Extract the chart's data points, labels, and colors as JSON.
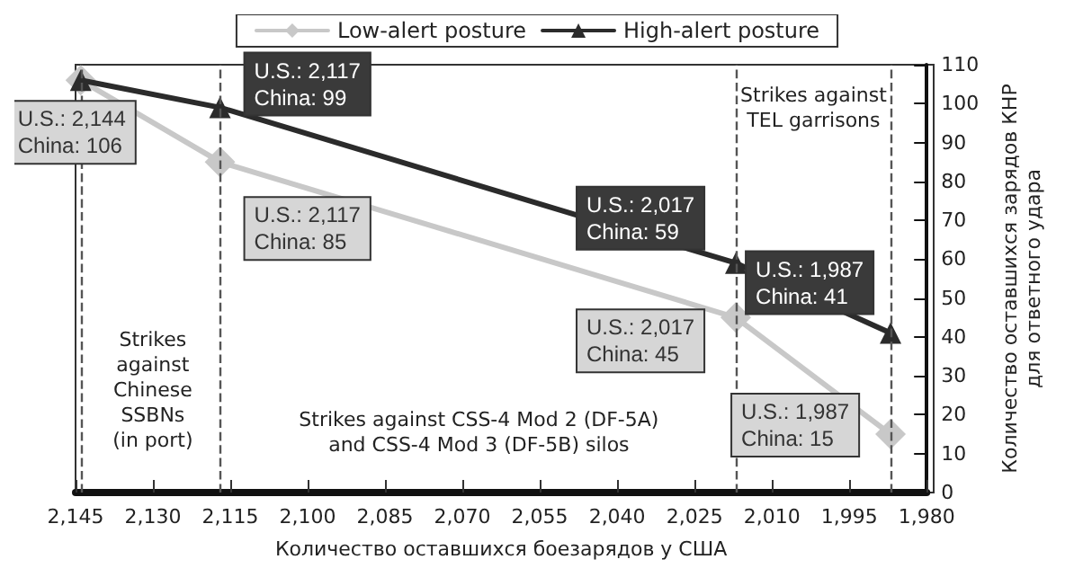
{
  "chart_data": {
    "type": "line",
    "xlabel": "Количество оставшихся боезарядов у США",
    "ylabel": "Количество оставшихся зарядов КНР\nдля ответного удара",
    "x": [
      2144,
      2117,
      2017,
      1987
    ],
    "series": [
      {
        "name": "Low-alert posture",
        "color": "#c8c8c8",
        "marker": "diamond",
        "values": [
          106,
          85,
          45,
          15
        ]
      },
      {
        "name": "High-alert posture",
        "color": "#2b2b2b",
        "marker": "triangle",
        "values": [
          106,
          99,
          59,
          41
        ]
      }
    ],
    "xlim": [
      2145,
      1980
    ],
    "xticks": [
      {
        "value": 2145,
        "label": "2,145"
      },
      {
        "value": 2130,
        "label": "2,130"
      },
      {
        "value": 2115,
        "label": "2,115"
      },
      {
        "value": 2100,
        "label": "2,100"
      },
      {
        "value": 2085,
        "label": "2,085"
      },
      {
        "value": 2070,
        "label": "2,070"
      },
      {
        "value": 2055,
        "label": "2,055"
      },
      {
        "value": 2040,
        "label": "2,040"
      },
      {
        "value": 2025,
        "label": "2,025"
      },
      {
        "value": 2010,
        "label": "2,010"
      },
      {
        "value": 1995,
        "label": "1,995"
      },
      {
        "value": 1980,
        "label": "1,980"
      }
    ],
    "ylim": [
      0,
      110
    ],
    "yticks": [
      0,
      10,
      20,
      30,
      40,
      50,
      60,
      70,
      80,
      90,
      100,
      110
    ],
    "ref_lines": [
      {
        "axis": "x",
        "value": 2144,
        "color": "#555555",
        "line_style": "dashed"
      },
      {
        "axis": "x",
        "value": 2117,
        "color": "#555555",
        "line_style": "dashed"
      },
      {
        "axis": "x",
        "value": 2017,
        "color": "#555555",
        "line_style": "dashed"
      },
      {
        "axis": "x",
        "value": 1987,
        "color": "#555555",
        "line_style": "dashed"
      }
    ],
    "annotations": [
      {
        "text": "U.S.: 2,144\nChina: 106",
        "x": 2144,
        "y": 106
      },
      {
        "text": "U.S.: 2,117\nChina: 99",
        "x": 2117,
        "y": 99
      },
      {
        "text": "U.S.: 2,117\nChina: 85",
        "x": 2117,
        "y": 85
      },
      {
        "text": "U.S.: 2,017\nChina: 59",
        "x": 2017,
        "y": 59
      },
      {
        "text": "U.S.: 2,017\nChina: 45",
        "x": 2017,
        "y": 45
      },
      {
        "text": "U.S.: 1,987\nChina: 41",
        "x": 1987,
        "y": 41
      },
      {
        "text": "U.S.: 1,987\nChina: 15",
        "x": 1987,
        "y": 15
      },
      "Strikes\nagainst\nChinese\nSSBNs\n(in port)",
      "Strikes against CSS-4 Mod 2 (DF-5A)\nand CSS-4 Mod 3 (DF-5B) silos",
      "Strikes against\nTEL garrisons"
    ],
    "grid": false,
    "legend": "top",
    "line_style": "solid"
  }
}
